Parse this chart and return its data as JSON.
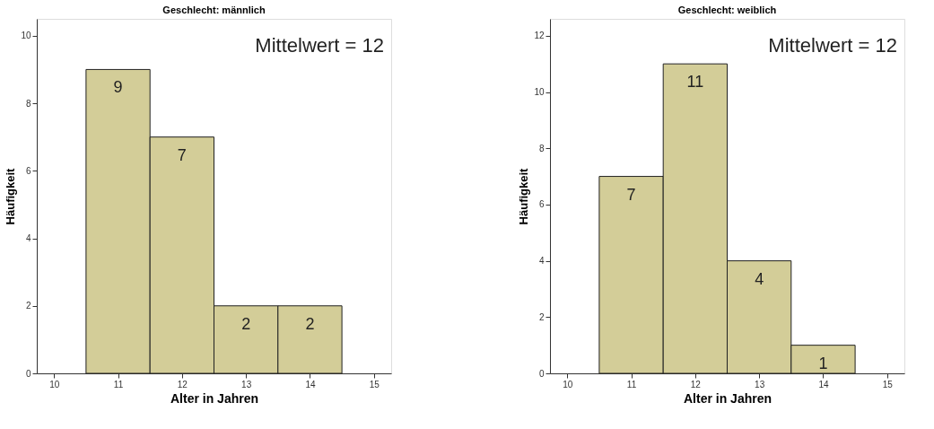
{
  "chart_data": [
    {
      "type": "histogram",
      "title": "Geschlecht: männlich",
      "xlabel": "Alter in Jahren",
      "ylabel": "Häufigkeit",
      "bins": [
        10.5,
        11.5,
        12.5,
        13.5,
        14.5
      ],
      "values": [
        9,
        7,
        2,
        2
      ],
      "color": "#d3cd98",
      "xlim": [
        9.73,
        15.27
      ],
      "xticks": [
        10,
        11,
        12,
        13,
        14,
        15
      ],
      "ylim": [
        0,
        10.5
      ],
      "yticks": [
        0,
        2,
        4,
        6,
        8,
        10
      ],
      "grid": false,
      "data_labels": true,
      "annotations": [
        "Mittelwert = 12"
      ]
    },
    {
      "type": "histogram",
      "title": "Geschlecht: weiblich",
      "xlabel": "Alter in Jahren",
      "ylabel": "Häufigkeit",
      "bins": [
        10.5,
        11.5,
        12.5,
        13.5,
        14.5
      ],
      "values": [
        7,
        11,
        4,
        1
      ],
      "color": "#d3cd98",
      "xlim": [
        9.73,
        15.27
      ],
      "xticks": [
        10,
        11,
        12,
        13,
        14,
        15
      ],
      "ylim": [
        0,
        12.6
      ],
      "yticks": [
        0,
        2,
        4,
        6,
        8,
        10,
        12
      ],
      "grid": false,
      "data_labels": true,
      "annotations": [
        "Mittelwert = 12"
      ]
    }
  ]
}
